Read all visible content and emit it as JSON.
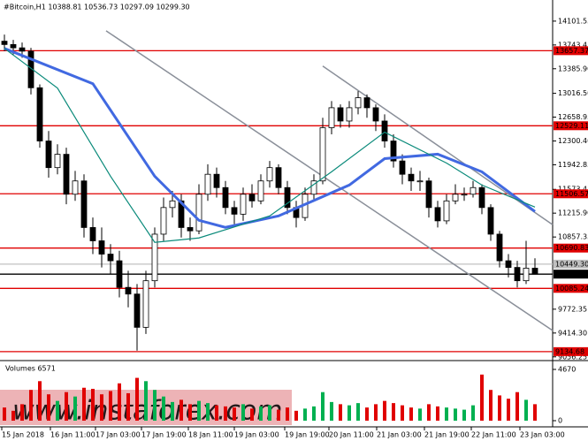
{
  "chart_data": {
    "type": "candlestick",
    "header": "#Bitcoin,H1  10388.81 10536.73 10297.09 10299.30",
    "open": [
      13800,
      13750,
      13700,
      13650,
      13100,
      12300,
      11900,
      12100,
      11500,
      11700,
      11000,
      10800,
      10600,
      10500,
      10100,
      10000,
      9500,
      10200,
      10900,
      11300,
      11400,
      11000,
      10950,
      11500,
      11800,
      11600,
      11300,
      11200,
      11500,
      11400,
      11700,
      11900,
      11600,
      11300,
      11150,
      11500,
      11700,
      12500,
      12800,
      12600,
      12800,
      12950,
      12800,
      12600,
      12300,
      12000,
      11800,
      11700,
      11700,
      11300,
      11100,
      11400,
      11500,
      11500,
      11600,
      11300,
      10900,
      10500,
      10400,
      10200,
      10388.81
    ],
    "high": [
      13900,
      13820,
      13780,
      13700,
      13150,
      12450,
      12250,
      12200,
      11850,
      11800,
      11150,
      11000,
      10750,
      10650,
      10350,
      10150,
      10350,
      11000,
      11450,
      11550,
      11500,
      11150,
      11650,
      11950,
      11900,
      11700,
      11400,
      11600,
      11650,
      11800,
      12000,
      11950,
      11700,
      11400,
      11600,
      11800,
      12650,
      12900,
      12850,
      12900,
      13050,
      13000,
      12850,
      12700,
      12400,
      12100,
      11900,
      11850,
      11750,
      11400,
      11500,
      11650,
      11600,
      11700,
      11650,
      11350,
      10950,
      10600,
      10500,
      10800,
      10536.73
    ],
    "low": [
      13650,
      13600,
      13550,
      13000,
      12200,
      11750,
      11800,
      11350,
      11400,
      10850,
      10600,
      10400,
      10300,
      9950,
      9800,
      9150,
      9400,
      10100,
      10800,
      11150,
      10850,
      10800,
      10900,
      11400,
      11450,
      11200,
      11050,
      11100,
      11300,
      11350,
      11600,
      11500,
      11200,
      11000,
      11100,
      11400,
      11650,
      12400,
      12500,
      12500,
      12700,
      12650,
      12450,
      12200,
      11900,
      11650,
      11550,
      11550,
      11150,
      11000,
      11050,
      11350,
      11400,
      11450,
      11200,
      10800,
      10400,
      10250,
      10100,
      10150,
      10297.09
    ],
    "close": [
      13750,
      13700,
      13650,
      13100,
      12300,
      11900,
      12100,
      11500,
      11700,
      11000,
      10800,
      10600,
      10500,
      10100,
      10000,
      9500,
      10200,
      10900,
      11300,
      11400,
      11000,
      10950,
      11500,
      11800,
      11600,
      11300,
      11200,
      11500,
      11400,
      11700,
      11900,
      11600,
      11300,
      11150,
      11500,
      11700,
      12500,
      12800,
      12600,
      12800,
      12950,
      12800,
      12600,
      12300,
      12000,
      11800,
      11700,
      11700,
      11300,
      11100,
      11400,
      11500,
      11500,
      11600,
      11300,
      10900,
      10500,
      10400,
      10200,
      10388.81,
      10299.3
    ],
    "volume": [
      1200,
      900,
      1500,
      2800,
      3600,
      2400,
      1800,
      2600,
      2200,
      3000,
      2900,
      2400,
      2700,
      3400,
      2500,
      3900,
      3600,
      2800,
      2200,
      1700,
      1900,
      1500,
      1800,
      1600,
      1400,
      1300,
      1200,
      1500,
      1100,
      1300,
      1400,
      1000,
      1200,
      900,
      1100,
      1300,
      2600,
      1700,
      1500,
      1400,
      1600,
      1200,
      1500,
      1800,
      1600,
      1400,
      1200,
      1100,
      1500,
      1300,
      1200,
      1100,
      1000,
      1400,
      4200,
      2800,
      2300,
      2000,
      2600,
      1900,
      1500
    ],
    "up_color": "#ffffff",
    "down_color": "#000000",
    "volume_up_color": "#00b050",
    "volume_down_color": "#e00000",
    "indicators": [
      {
        "color": "#4169e1",
        "width": 3,
        "x": [
          0,
          10,
          17,
          22,
          25,
          31,
          39,
          43,
          49,
          54,
          60
        ],
        "values": [
          13691,
          13161,
          11770,
          11108,
          11002,
          11174,
          11638,
          12035,
          12102,
          11837,
          11241
        ]
      },
      {
        "color": "#0a8a7a",
        "width": 1.2,
        "x": [
          0,
          6,
          12,
          17,
          22,
          30,
          37,
          43,
          50,
          54,
          60
        ],
        "values": [
          13691,
          13095,
          11770,
          10777,
          10843,
          11174,
          11837,
          12433,
          11969,
          11638,
          11307
        ]
      }
    ],
    "trendlines": [
      {
        "color": "#8a8f99",
        "x": [
          11.5,
          62
        ],
        "values": [
          13956,
          9452
        ]
      },
      {
        "color": "#8a8f99",
        "x": [
          36,
          62
        ],
        "values": [
          13426,
          11042
        ]
      }
    ],
    "levels": [
      {
        "value": 13657.37,
        "label": "13657.37",
        "color": "#e00000"
      },
      {
        "value": 12529.11,
        "label": "12529.11",
        "color": "#e00000"
      },
      {
        "value": 11506.57,
        "label": "11506.57",
        "color": "#e00000"
      },
      {
        "value": 10690.83,
        "label": "10690.83",
        "color": "#e00000"
      },
      {
        "value": 10449.3,
        "label": "10449.30",
        "color": "#c0c0c0"
      },
      {
        "value": 10299.3,
        "label": "10299.30",
        "color": "#000000"
      },
      {
        "value": 10085.24,
        "label": "10085.24",
        "color": "#e00000"
      },
      {
        "value": 9134.68,
        "label": "9134.68",
        "color": "#e00000"
      }
    ],
    "xlim": [
      -0.5,
      62
    ],
    "ylim": [
      9040,
      14419
    ],
    "yticks": [
      14101.55,
      13743.45,
      {
        "value": 13385.9,
        "label": "13385.90"
      },
      {
        "value": 13016.5,
        "label": "13016.50"
      },
      12658.95,
      {
        "value": 12300.4,
        "label": "12300.40"
      },
      11942.85,
      11573.45,
      {
        "value": 11215.9,
        "label": "11215.90"
      },
      10857.35,
      9772.35,
      {
        "value": 9414.3,
        "label": "9414.30"
      },
      9056.25
    ],
    "xticks": [
      {
        "value": -0.3,
        "label": "15 Jan 2018"
      },
      {
        "value": 5.2,
        "label": "16 Jan 11:00"
      },
      {
        "value": 10.3,
        "label": "17 Jan 03:00"
      },
      {
        "value": 15.5,
        "label": "17 Jan 19:00"
      },
      {
        "value": 20.8,
        "label": "18 Jan 11:00"
      },
      {
        "value": 26,
        "label": "19 Jan 03:00"
      },
      {
        "value": 31.7,
        "label": "19 Jan 19:00"
      },
      {
        "value": 36.7,
        "label": "20 Jan 11:00"
      },
      {
        "value": 42.1,
        "label": "21 Jan 03:00"
      },
      {
        "value": 47.5,
        "label": "21 Jan 19:00"
      },
      {
        "value": 52.8,
        "label": "22 Jan 11:00"
      },
      {
        "value": 58.3,
        "label": "23 Jan 03:00"
      }
    ],
    "volume_title": "Volumes 6571",
    "volume_lim": [
      0,
      4670
    ],
    "volume_ticks": [
      4670,
      0
    ],
    "watermark": "www.instaforex.com"
  }
}
